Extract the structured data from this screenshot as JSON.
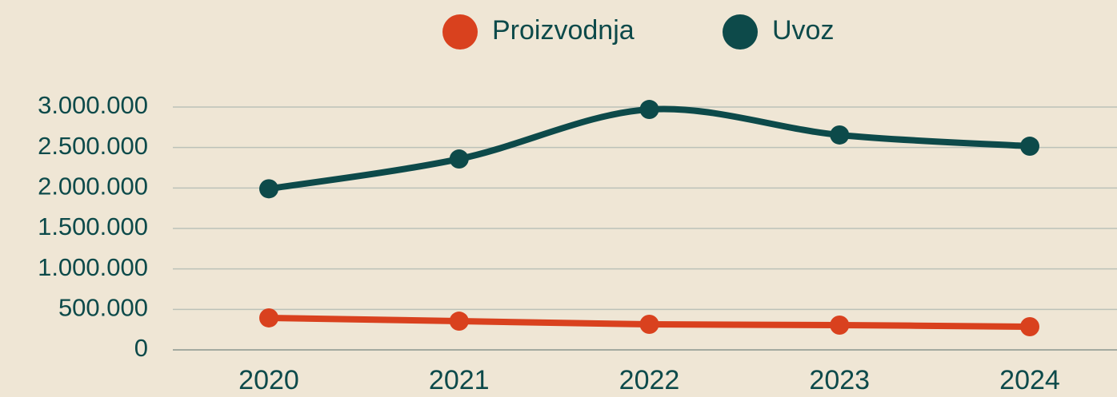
{
  "chart_data": {
    "type": "line",
    "categories": [
      "2020",
      "2021",
      "2022",
      "2023",
      "2024"
    ],
    "series": [
      {
        "name": "Proizvodnja",
        "color": "#d9411e",
        "values": [
          395000,
          355000,
          316000,
          306000,
          286000
        ]
      },
      {
        "name": "Uvoz",
        "color": "#0d4a4a",
        "values": [
          1990000,
          2358000,
          2970000,
          2655000,
          2516000
        ]
      }
    ],
    "ylim": [
      0,
      3000000
    ],
    "yticks": [
      0,
      {
        "value": 500000,
        "label": "500.000"
      },
      {
        "value": 1000000,
        "label": "1.000.000"
      },
      {
        "value": 1500000,
        "label": "1.500.000"
      },
      {
        "value": 2000000,
        "label": "2.000.000"
      },
      {
        "value": 2500000,
        "label": "2.500.000"
      },
      {
        "value": 3000000,
        "label": "3.000.000"
      }
    ],
    "grid": true,
    "legend": "top"
  }
}
